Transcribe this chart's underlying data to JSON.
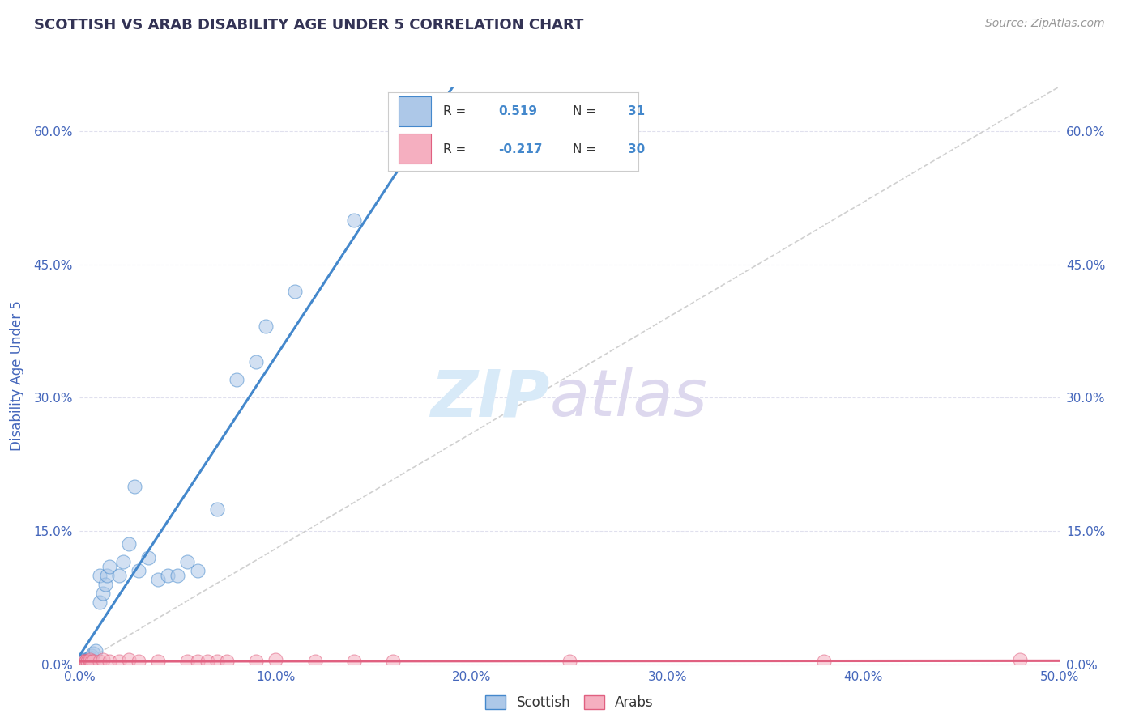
{
  "title": "SCOTTISH VS ARAB DISABILITY AGE UNDER 5 CORRELATION CHART",
  "source": "Source: ZipAtlas.com",
  "ylabel": "Disability Age Under 5",
  "xlabel": "",
  "xlim": [
    0.0,
    0.5
  ],
  "ylim": [
    0.0,
    0.65
  ],
  "xticks": [
    0.0,
    0.1,
    0.2,
    0.3,
    0.4,
    0.5
  ],
  "yticks": [
    0.0,
    0.15,
    0.3,
    0.45,
    0.6
  ],
  "ytick_labels": [
    "0.0%",
    "15.0%",
    "30.0%",
    "45.0%",
    "60.0%"
  ],
  "xtick_labels": [
    "0.0%",
    "10.0%",
    "20.0%",
    "30.0%",
    "40.0%",
    "50.0%"
  ],
  "scottish_color": "#adc8e8",
  "arab_color": "#f5afc0",
  "scottish_line_color": "#4488cc",
  "arab_line_color": "#e06080",
  "diagonal_color": "#c8c8c8",
  "title_color": "#333355",
  "source_color": "#999999",
  "axis_label_color": "#4466bb",
  "R_scottish": 0.519,
  "N_scottish": 31,
  "R_arab": -0.217,
  "N_arab": 30,
  "scottish_x": [
    0.002,
    0.003,
    0.004,
    0.005,
    0.005,
    0.006,
    0.007,
    0.008,
    0.01,
    0.01,
    0.012,
    0.013,
    0.014,
    0.015,
    0.02,
    0.022,
    0.025,
    0.028,
    0.03,
    0.035,
    0.04,
    0.045,
    0.05,
    0.055,
    0.06,
    0.07,
    0.08,
    0.09,
    0.095,
    0.11,
    0.14
  ],
  "scottish_y": [
    0.005,
    0.005,
    0.005,
    0.005,
    0.008,
    0.01,
    0.012,
    0.015,
    0.07,
    0.1,
    0.08,
    0.09,
    0.1,
    0.11,
    0.1,
    0.115,
    0.135,
    0.2,
    0.105,
    0.12,
    0.095,
    0.1,
    0.1,
    0.115,
    0.105,
    0.175,
    0.32,
    0.34,
    0.38,
    0.42,
    0.5
  ],
  "arab_x": [
    0.002,
    0.002,
    0.003,
    0.003,
    0.004,
    0.004,
    0.005,
    0.005,
    0.006,
    0.007,
    0.01,
    0.012,
    0.015,
    0.02,
    0.025,
    0.03,
    0.04,
    0.055,
    0.06,
    0.065,
    0.07,
    0.075,
    0.09,
    0.1,
    0.12,
    0.14,
    0.16,
    0.25,
    0.38,
    0.48
  ],
  "arab_y": [
    0.003,
    0.003,
    0.003,
    0.003,
    0.003,
    0.003,
    0.003,
    0.005,
    0.003,
    0.003,
    0.003,
    0.005,
    0.003,
    0.003,
    0.005,
    0.003,
    0.003,
    0.003,
    0.003,
    0.003,
    0.003,
    0.003,
    0.003,
    0.005,
    0.003,
    0.003,
    0.003,
    0.003,
    0.003,
    0.005
  ],
  "watermark_zip_color": "#d8eaf8",
  "watermark_atlas_color": "#ddd8ee",
  "background_color": "#ffffff",
  "grid_color": "#e0e0ee",
  "scatter_size": 150,
  "scatter_alpha": 0.55,
  "scatter_linewidth": 0.8
}
